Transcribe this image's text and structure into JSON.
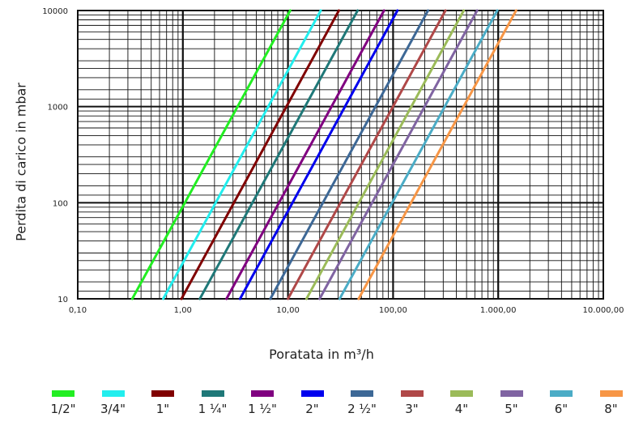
{
  "chart_data": {
    "type": "line",
    "title": "",
    "xlabel": "Poratata in m³/h",
    "ylabel": "Perdita di carico in mbar",
    "xscale": "log",
    "yscale": "log",
    "xlim": [
      0.1,
      10000
    ],
    "ylim": [
      10,
      10000
    ],
    "x_tick_labels": [
      "0,10",
      "1,00",
      "10,00",
      "100,00",
      "1.000,00",
      "10.000,00"
    ],
    "y_tick_labels": [
      "10",
      "100",
      "1000",
      "10000"
    ],
    "grid": true,
    "legend_position": "bottom",
    "series": [
      {
        "name": "1/2\"",
        "color": "#22ee22",
        "x": [
          0.33,
          10.5
        ],
        "y": [
          10,
          10000
        ]
      },
      {
        "name": "3/4\"",
        "color": "#22eeee",
        "x": [
          0.65,
          20.5
        ],
        "y": [
          10,
          10000
        ]
      },
      {
        "name": "1\"",
        "color": "#800000",
        "x": [
          0.97,
          30.5
        ],
        "y": [
          10,
          10000
        ]
      },
      {
        "name": "1 ¼\"",
        "color": "#1f7878",
        "x": [
          1.45,
          46
        ],
        "y": [
          10,
          10000
        ]
      },
      {
        "name": "1 ½\"",
        "color": "#800080",
        "x": [
          2.6,
          82
        ],
        "y": [
          10,
          10000
        ]
      },
      {
        "name": "2\"",
        "color": "#0000ee",
        "x": [
          3.5,
          110
        ],
        "y": [
          10,
          10000
        ]
      },
      {
        "name": "2 ½\"",
        "color": "#3d6896",
        "x": [
          6.8,
          215
        ],
        "y": [
          10,
          10000
        ]
      },
      {
        "name": "3\"",
        "color": "#b04848",
        "x": [
          10,
          315
        ],
        "y": [
          10,
          10000
        ]
      },
      {
        "name": "4\"",
        "color": "#9bbb59",
        "x": [
          15,
          470
        ],
        "y": [
          10,
          10000
        ]
      },
      {
        "name": "5\"",
        "color": "#8064a2",
        "x": [
          20,
          630
        ],
        "y": [
          10,
          10000
        ]
      },
      {
        "name": "6\"",
        "color": "#4bacc6",
        "x": [
          31,
          980
        ],
        "y": [
          10,
          10000
        ]
      },
      {
        "name": "8\"",
        "color": "#f79646",
        "x": [
          47,
          1480
        ],
        "y": [
          10,
          10000
        ]
      }
    ]
  }
}
